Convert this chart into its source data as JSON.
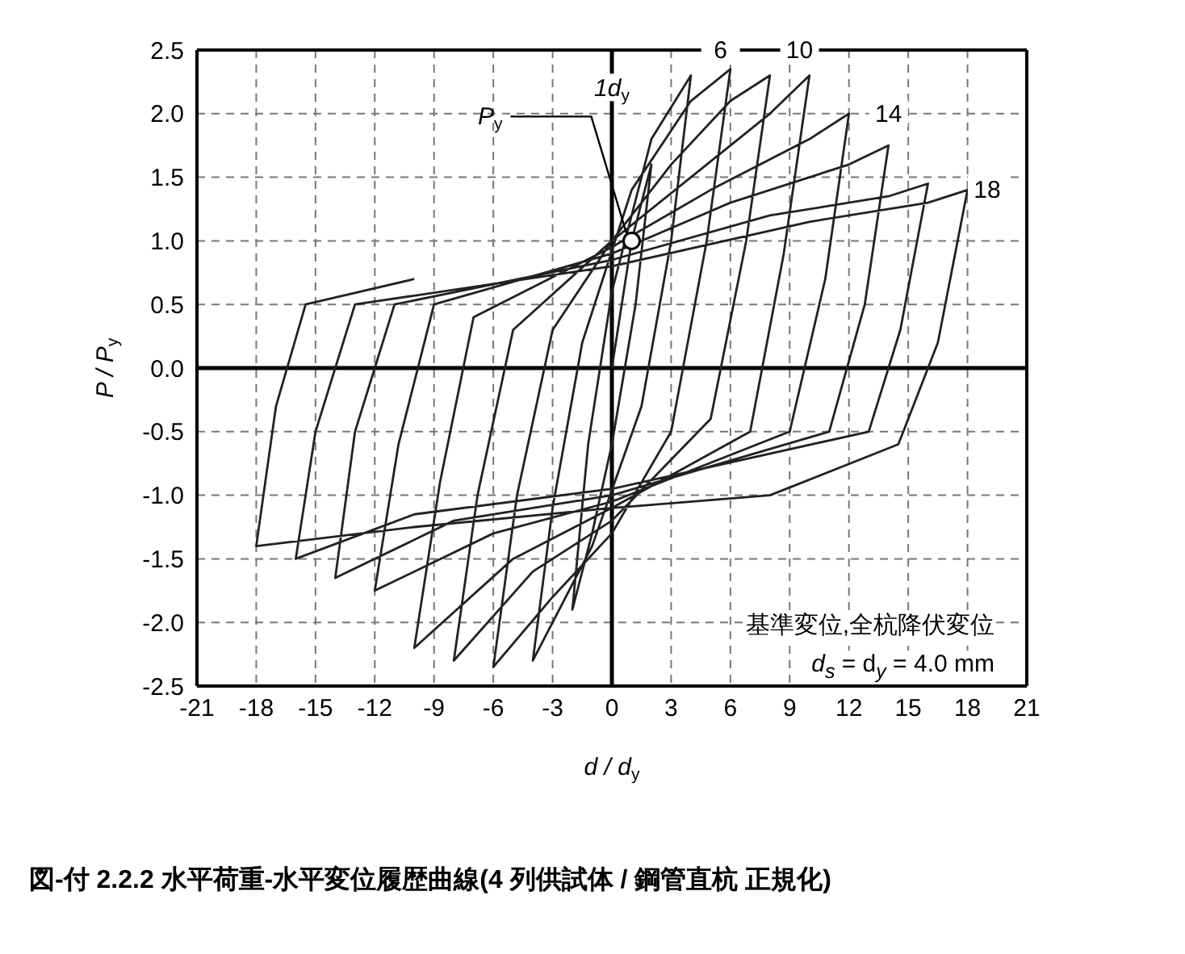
{
  "chart_data": {
    "type": "line",
    "title": "図-付 2.2.2 水平荷重-水平変位履歴曲線(4 列供試体 / 鋼管直杭 正規化)",
    "xlabel": "d / d$_{y}$",
    "ylabel": "P / P$_{y}$",
    "xlim": [
      -21,
      21
    ],
    "xticks": [
      -21,
      -18,
      -15,
      -12,
      -9,
      -6,
      -3,
      0,
      3,
      6,
      9,
      12,
      15,
      18,
      21
    ],
    "ylim": [
      -2.5,
      2.5
    ],
    "yticks": [
      {
        "value": -2.5,
        "label": "-2.5"
      },
      {
        "value": -2,
        "label": "-2.0"
      },
      {
        "value": -1.5,
        "label": "-1.5"
      },
      {
        "value": -1,
        "label": "-1.0"
      },
      {
        "value": -0.5,
        "label": "-0.5"
      },
      {
        "value": 0,
        "label": "0.0"
      },
      {
        "value": 0.5,
        "label": "0.5"
      },
      {
        "value": 1,
        "label": "1.0"
      },
      {
        "value": 1.5,
        "label": "1.5"
      },
      {
        "value": 2,
        "label": "2.0"
      },
      {
        "value": 2.5,
        "label": "2.5"
      }
    ],
    "grid": true,
    "legend": false,
    "marker": "none",
    "line_style": "solid",
    "series": [
      {
        "color": "#222222",
        "x": [
          0,
          1,
          2,
          1.2,
          0,
          -1,
          -2,
          -1.2,
          0,
          2,
          4,
          3,
          1.5,
          -1,
          -4,
          -3,
          -1.5,
          1,
          4,
          6,
          4.8,
          3,
          0,
          -3,
          -6,
          -4.8,
          -3,
          0,
          3,
          6,
          8,
          6.8,
          5,
          0,
          -4,
          -8,
          -6.8,
          -5,
          0,
          4,
          8,
          10,
          8.7,
          7,
          0,
          -5,
          -10,
          -8.7,
          -7,
          0,
          5,
          10,
          12,
          10.8,
          9,
          0,
          -6,
          -12,
          -10.8,
          -9,
          0,
          6,
          12,
          14,
          12.8,
          11,
          0,
          -8,
          -14,
          -13,
          -11,
          0,
          8,
          14,
          16,
          14.6,
          13,
          0,
          -10,
          -16,
          -15,
          -13,
          0,
          10,
          16,
          18,
          16.5,
          14.5,
          8,
          0,
          -10,
          -18,
          -17,
          -15.5,
          -10
        ],
        "values": [
          0,
          1.0,
          1.6,
          0.5,
          -0.6,
          -1.3,
          -1.9,
          -0.6,
          0.6,
          1.8,
          2.3,
          1.0,
          -0.3,
          -1.4,
          -2.3,
          -1.1,
          0.2,
          1.4,
          2.1,
          2.35,
          1.0,
          -0.5,
          -1.3,
          -1.8,
          -2.35,
          -1.0,
          0.3,
          1.0,
          1.6,
          2.1,
          2.3,
          1.0,
          -0.4,
          -1.2,
          -1.6,
          -2.3,
          -1.0,
          0.3,
          1.0,
          1.5,
          2.0,
          2.3,
          0.9,
          -0.5,
          -1.1,
          -1.5,
          -2.2,
          -0.9,
          0.4,
          0.95,
          1.4,
          1.8,
          2.0,
          0.7,
          -0.5,
          -1.05,
          -1.3,
          -1.75,
          -0.6,
          0.5,
          0.9,
          1.3,
          1.6,
          1.75,
          0.5,
          -0.5,
          -1.0,
          -1.2,
          -1.65,
          -0.5,
          0.5,
          0.85,
          1.2,
          1.35,
          1.45,
          0.3,
          -0.5,
          -0.95,
          -1.15,
          -1.5,
          -0.5,
          0.5,
          0.8,
          1.15,
          1.3,
          1.4,
          0.2,
          -0.6,
          -1.0,
          -1.1,
          -1.25,
          -1.4,
          -0.3,
          0.5,
          0.7
        ]
      }
    ],
    "annotations": [
      {
        "text": "6",
        "x": 5.5,
        "y": 2.5
      },
      {
        "text": "10",
        "x": 9.5,
        "y": 2.5
      },
      {
        "text": "14",
        "x": 14,
        "y": 2.0
      },
      {
        "text": "18",
        "x": 19,
        "y": 1.4
      },
      {
        "text": "1d$_{y}$",
        "x": 0,
        "y": 2.2
      },
      {
        "text": "P$_{y}$",
        "x": 1,
        "y": 1.0
      },
      "基準変位,全杭降伏変位",
      "d$_{s}$ = d$_{y}$  = 4.0 mm"
    ]
  }
}
